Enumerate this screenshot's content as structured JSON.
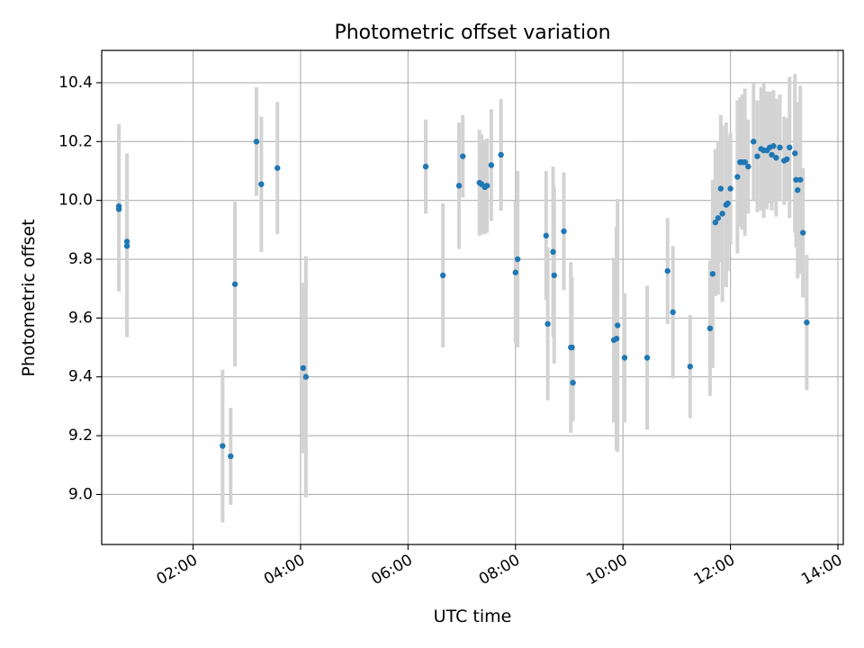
{
  "chart_data": {
    "type": "scatter",
    "title": "Photometric offset variation",
    "xlabel": "UTC time",
    "ylabel": "Photometric offset",
    "grid": true,
    "x_axis": {
      "unit": "hours UTC",
      "range": [
        0.3,
        14.1
      ],
      "ticks": [
        2,
        4,
        6,
        8,
        10,
        12,
        14
      ],
      "tick_labels": [
        "02:00",
        "04:00",
        "06:00",
        "08:00",
        "10:00",
        "12:00",
        "14:00"
      ]
    },
    "y_axis": {
      "range": [
        8.83,
        10.51
      ],
      "ticks": [
        9.0,
        9.2,
        9.4,
        9.6,
        9.8,
        10.0,
        10.2,
        10.4
      ],
      "tick_labels": [
        "9.0",
        "9.2",
        "9.4",
        "9.6",
        "9.8",
        "10.0",
        "10.2",
        "10.4"
      ]
    },
    "colors": {
      "point": "#1f77b4",
      "errorbar": "#d3d3d3",
      "grid": "#b0b0b0"
    },
    "points": [
      {
        "x": 0.62,
        "y": 9.98,
        "err": 0.28
      },
      {
        "x": 0.62,
        "y": 9.97,
        "err": 0.28
      },
      {
        "x": 0.77,
        "y": 9.86,
        "err": 0.3
      },
      {
        "x": 0.77,
        "y": 9.845,
        "err": 0.31
      },
      {
        "x": 2.55,
        "y": 9.165,
        "err": 0.26
      },
      {
        "x": 2.7,
        "y": 9.13,
        "err": 0.165
      },
      {
        "x": 2.78,
        "y": 9.715,
        "err": 0.28
      },
      {
        "x": 3.18,
        "y": 10.2,
        "err": 0.185
      },
      {
        "x": 3.27,
        "y": 10.055,
        "err": 0.23
      },
      {
        "x": 3.57,
        "y": 10.11,
        "err": 0.225
      },
      {
        "x": 4.05,
        "y": 9.43,
        "err": 0.29
      },
      {
        "x": 4.1,
        "y": 9.4,
        "err": 0.41
      },
      {
        "x": 6.33,
        "y": 10.115,
        "err": 0.16
      },
      {
        "x": 6.65,
        "y": 9.745,
        "err": 0.245
      },
      {
        "x": 6.95,
        "y": 10.05,
        "err": 0.215
      },
      {
        "x": 7.02,
        "y": 10.15,
        "err": 0.14
      },
      {
        "x": 7.33,
        "y": 10.06,
        "err": 0.18
      },
      {
        "x": 7.37,
        "y": 10.055,
        "err": 0.17
      },
      {
        "x": 7.43,
        "y": 10.045,
        "err": 0.16
      },
      {
        "x": 7.47,
        "y": 10.05,
        "err": 0.16
      },
      {
        "x": 7.55,
        "y": 10.12,
        "err": 0.19
      },
      {
        "x": 7.73,
        "y": 10.155,
        "err": 0.19
      },
      {
        "x": 8.0,
        "y": 9.755,
        "err": 0.24
      },
      {
        "x": 8.04,
        "y": 9.8,
        "err": 0.3
      },
      {
        "x": 8.57,
        "y": 9.88,
        "err": 0.22
      },
      {
        "x": 8.6,
        "y": 9.58,
        "err": 0.26
      },
      {
        "x": 8.7,
        "y": 9.825,
        "err": 0.29
      },
      {
        "x": 8.72,
        "y": 9.745,
        "err": 0.3
      },
      {
        "x": 8.9,
        "y": 9.895,
        "err": 0.2
      },
      {
        "x": 9.03,
        "y": 9.5,
        "err": 0.29
      },
      {
        "x": 9.05,
        "y": 9.5,
        "err": 0.24
      },
      {
        "x": 9.07,
        "y": 9.38,
        "err": 0.13
      },
      {
        "x": 9.83,
        "y": 9.525,
        "err": 0.28
      },
      {
        "x": 9.88,
        "y": 9.53,
        "err": 0.38
      },
      {
        "x": 9.9,
        "y": 9.575,
        "err": 0.43
      },
      {
        "x": 10.03,
        "y": 9.465,
        "err": 0.22
      },
      {
        "x": 10.45,
        "y": 9.465,
        "err": 0.245
      },
      {
        "x": 10.83,
        "y": 9.76,
        "err": 0.18
      },
      {
        "x": 10.93,
        "y": 9.62,
        "err": 0.225
      },
      {
        "x": 11.25,
        "y": 9.435,
        "err": 0.175
      },
      {
        "x": 11.62,
        "y": 9.565,
        "err": 0.23
      },
      {
        "x": 11.67,
        "y": 9.75,
        "err": 0.32
      },
      {
        "x": 11.72,
        "y": 9.925,
        "err": 0.25
      },
      {
        "x": 11.77,
        "y": 9.94,
        "err": 0.26
      },
      {
        "x": 11.82,
        "y": 10.04,
        "err": 0.25
      },
      {
        "x": 11.85,
        "y": 9.955,
        "err": 0.3
      },
      {
        "x": 11.92,
        "y": 9.985,
        "err": 0.28
      },
      {
        "x": 11.95,
        "y": 9.99,
        "err": 0.23
      },
      {
        "x": 12.0,
        "y": 10.04,
        "err": 0.19
      },
      {
        "x": 12.13,
        "y": 10.08,
        "err": 0.26
      },
      {
        "x": 12.18,
        "y": 10.13,
        "err": 0.22
      },
      {
        "x": 12.22,
        "y": 10.13,
        "err": 0.23
      },
      {
        "x": 12.27,
        "y": 10.13,
        "err": 0.25
      },
      {
        "x": 12.33,
        "y": 10.115,
        "err": 0.16
      },
      {
        "x": 12.43,
        "y": 10.2,
        "err": 0.2
      },
      {
        "x": 12.5,
        "y": 10.15,
        "err": 0.19
      },
      {
        "x": 12.57,
        "y": 10.175,
        "err": 0.21
      },
      {
        "x": 12.62,
        "y": 10.17,
        "err": 0.23
      },
      {
        "x": 12.68,
        "y": 10.17,
        "err": 0.2
      },
      {
        "x": 12.73,
        "y": 10.18,
        "err": 0.19
      },
      {
        "x": 12.77,
        "y": 10.155,
        "err": 0.19
      },
      {
        "x": 12.8,
        "y": 10.185,
        "err": 0.19
      },
      {
        "x": 12.85,
        "y": 10.145,
        "err": 0.2
      },
      {
        "x": 12.92,
        "y": 10.18,
        "err": 0.18
      },
      {
        "x": 13.0,
        "y": 10.135,
        "err": 0.15
      },
      {
        "x": 13.05,
        "y": 10.14,
        "err": 0.14
      },
      {
        "x": 13.1,
        "y": 10.18,
        "err": 0.24
      },
      {
        "x": 13.2,
        "y": 10.16,
        "err": 0.27
      },
      {
        "x": 13.22,
        "y": 10.07,
        "err": 0.23
      },
      {
        "x": 13.25,
        "y": 10.035,
        "err": 0.3
      },
      {
        "x": 13.3,
        "y": 10.07,
        "err": 0.32
      },
      {
        "x": 13.35,
        "y": 9.89,
        "err": 0.22
      },
      {
        "x": 13.42,
        "y": 9.585,
        "err": 0.23
      }
    ]
  }
}
